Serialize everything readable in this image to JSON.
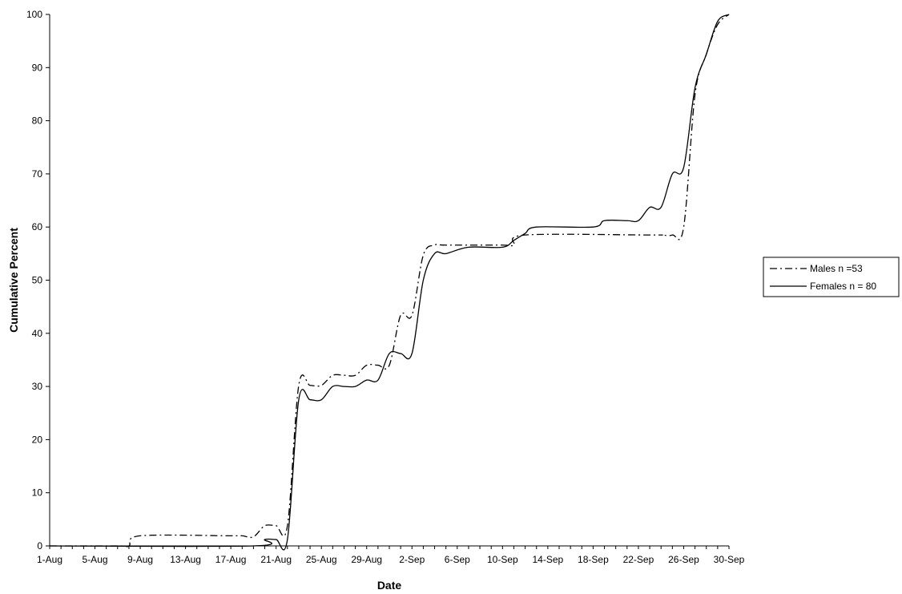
{
  "chart_data": {
    "type": "line",
    "title": "",
    "xlabel": "Date",
    "ylabel": "Cumulative Percent",
    "ylim": [
      0,
      100
    ],
    "yticks": [
      0,
      10,
      20,
      30,
      40,
      50,
      60,
      70,
      80,
      90,
      100
    ],
    "xlim": [
      "1-Aug",
      "30-Sep"
    ],
    "xtick_labels": [
      "1-Aug",
      "5-Aug",
      "9-Aug",
      "13-Aug",
      "17-Aug",
      "21-Aug",
      "25-Aug",
      "29-Aug",
      "2-Sep",
      "6-Sep",
      "10-Sep",
      "14-Sep",
      "18-Sep",
      "22-Sep",
      "26-Sep",
      "30-Sep"
    ],
    "grid": false,
    "legend_position": "right",
    "series": [
      {
        "name": "Males n =53",
        "line_style": "dash-dot",
        "color": "#000000",
        "x": [
          "1-Aug",
          "7-Aug",
          "8-Aug",
          "9-Aug",
          "17-Aug",
          "18-Aug",
          "19-Aug",
          "20-Aug",
          "21-Aug",
          "22-Aug",
          "23-Aug",
          "24-Aug",
          "25-Aug",
          "26-Aug",
          "27-Aug",
          "28-Aug",
          "29-Aug",
          "30-Aug",
          "31-Aug",
          "1-Sep",
          "2-Sep",
          "3-Sep",
          "4-Sep",
          "5-Sep",
          "10-Sep",
          "11-Sep",
          "12-Sep",
          "23-Sep",
          "24-Sep",
          "25-Sep",
          "26-Sep",
          "27-Sep",
          "28-Sep",
          "29-Sep",
          "30-Sep"
        ],
        "y": [
          0,
          0,
          0,
          1.9,
          1.9,
          1.9,
          1.7,
          3.8,
          3.8,
          3.8,
          30.2,
          30.2,
          30.2,
          32.1,
          32.1,
          32.1,
          34.0,
          34.0,
          34.0,
          43.4,
          43.4,
          54.7,
          56.6,
          56.6,
          56.6,
          56.6,
          58.5,
          58.5,
          58.5,
          58.5,
          60.0,
          84.9,
          92.5,
          98.1,
          100
        ]
      },
      {
        "name": "Females n = 80",
        "line_style": "solid",
        "color": "#000000",
        "x": [
          "1-Aug",
          "19-Aug",
          "20-Aug",
          "21-Aug",
          "22-Aug",
          "23-Aug",
          "24-Aug",
          "25-Aug",
          "26-Aug",
          "27-Aug",
          "28-Aug",
          "29-Aug",
          "30-Aug",
          "31-Aug",
          "1-Sep",
          "2-Sep",
          "3-Sep",
          "4-Sep",
          "5-Sep",
          "7-Sep",
          "10-Sep",
          "11-Sep",
          "12-Sep",
          "13-Sep",
          "18-Sep",
          "19-Sep",
          "21-Sep",
          "22-Sep",
          "23-Sep",
          "24-Sep",
          "25-Sep",
          "26-Sep",
          "27-Sep",
          "28-Sep",
          "29-Sep",
          "30-Sep"
        ],
        "y": [
          0,
          0,
          1.2,
          1.2,
          1.2,
          27.5,
          27.5,
          27.5,
          30.0,
          30.0,
          30.0,
          31.2,
          31.2,
          36.2,
          36.2,
          36.2,
          50.0,
          55.0,
          55.0,
          56.2,
          56.2,
          57.5,
          58.8,
          60.0,
          60.0,
          61.2,
          61.2,
          61.2,
          63.7,
          63.7,
          70.0,
          71.2,
          86.2,
          92.5,
          98.7,
          100
        ]
      }
    ]
  }
}
